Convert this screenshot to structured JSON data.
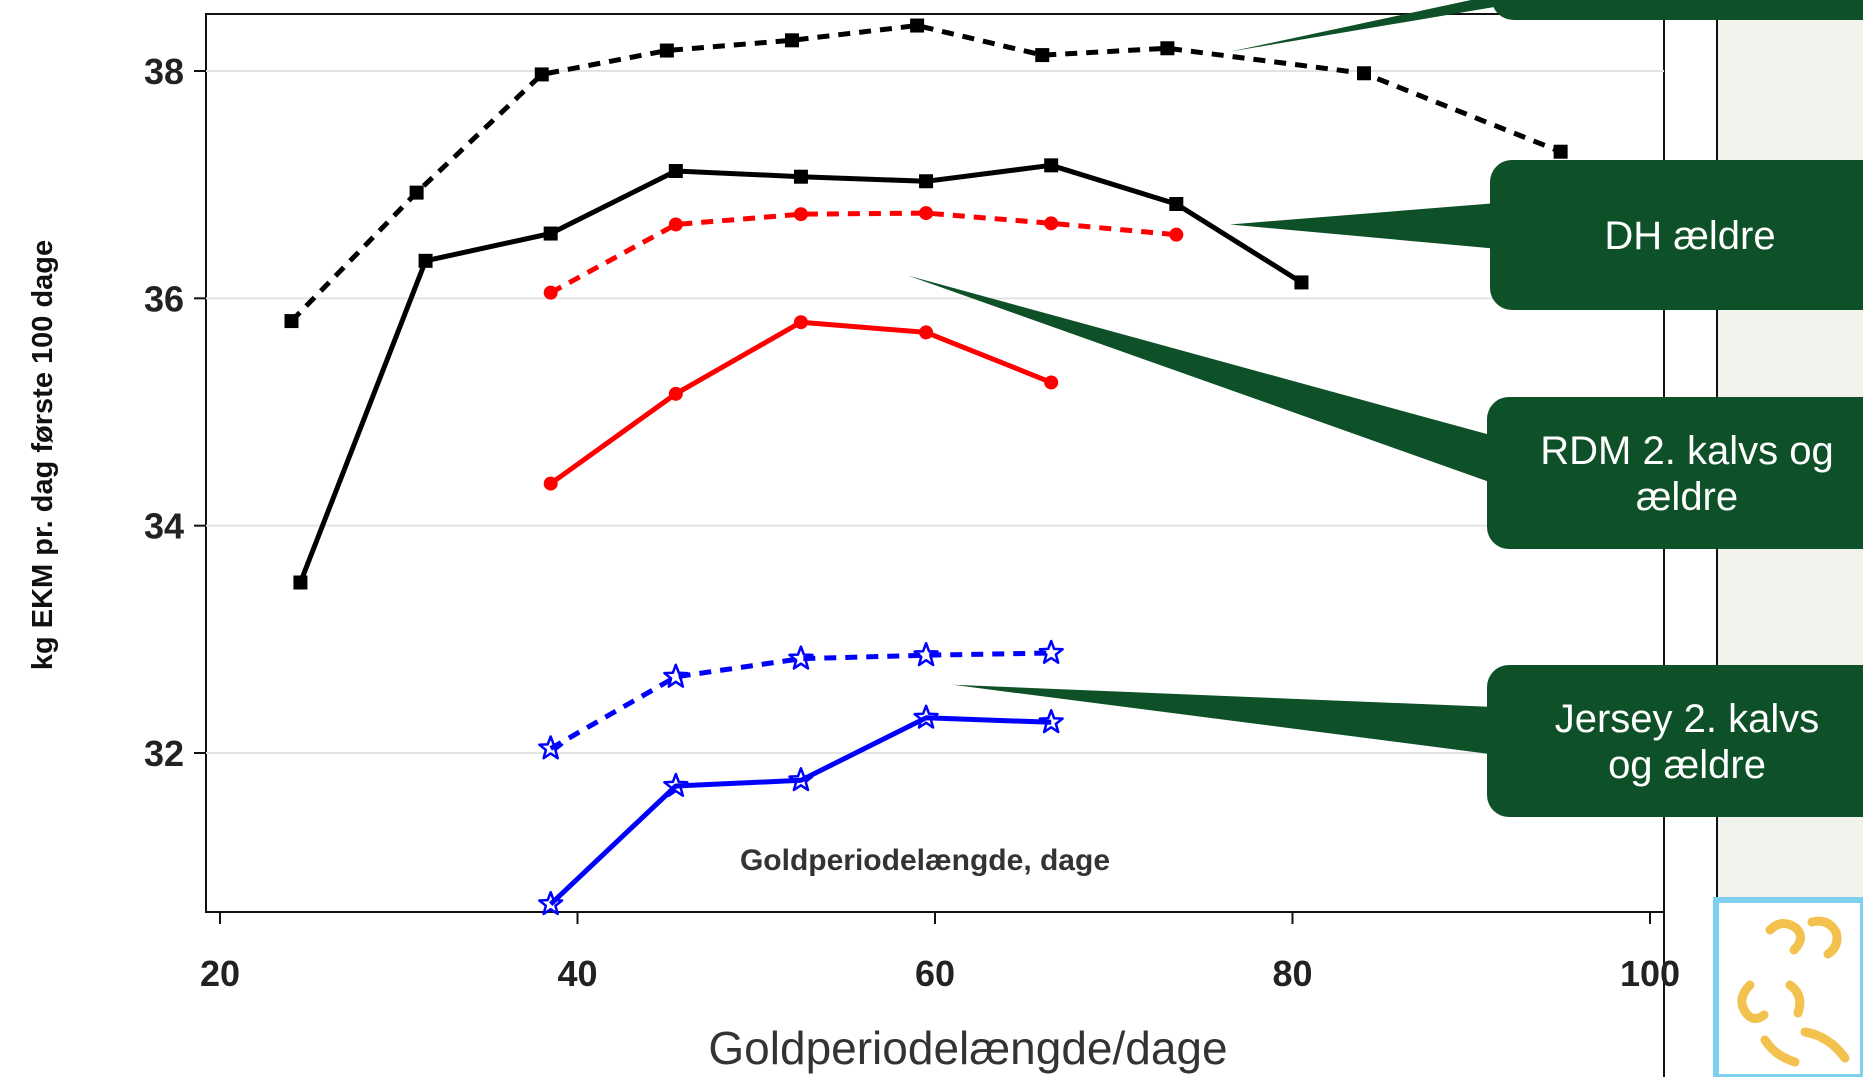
{
  "chart_data": {
    "type": "line",
    "xlabel": "Goldperiodelængde/dage",
    "ylabel": "kg EKM pr. dag første 100 dage",
    "inner_label": "Goldperiodelængde, dage",
    "xlim": [
      18,
      100.5
    ],
    "ylim": [
      30.55,
      38.5
    ],
    "x_ticks": [
      20,
      40,
      60,
      80,
      100
    ],
    "y_ticks": [
      32,
      34,
      36,
      38
    ],
    "grid": "horizontal",
    "series": [
      {
        "color": "#000000",
        "dashed": true,
        "marker": "square",
        "x": [
          24,
          31,
          38,
          45,
          52,
          59,
          66,
          73,
          84,
          95
        ],
        "y": [
          35.8,
          36.93,
          37.97,
          38.18,
          38.27,
          38.4,
          38.14,
          38.2,
          37.98,
          37.29
        ]
      },
      {
        "color": "#000000",
        "dashed": false,
        "marker": "square",
        "x": [
          24.5,
          31.5,
          38.5,
          45.5,
          52.5,
          59.5,
          66.5,
          73.5,
          80.5
        ],
        "y": [
          33.5,
          36.33,
          36.57,
          37.12,
          37.07,
          37.03,
          37.17,
          36.83,
          36.14
        ]
      },
      {
        "color": "#ff0000",
        "dashed": true,
        "marker": "circle",
        "x": [
          38.5,
          45.5,
          52.5,
          59.5,
          66.5,
          73.5
        ],
        "y": [
          36.05,
          36.65,
          36.74,
          36.75,
          36.66,
          36.56
        ]
      },
      {
        "color": "#ff0000",
        "dashed": false,
        "marker": "circle",
        "x": [
          38.5,
          45.5,
          52.5,
          59.5,
          66.5
        ],
        "y": [
          34.37,
          35.16,
          35.79,
          35.7,
          35.26
        ]
      },
      {
        "color": "#0000ff",
        "dashed": true,
        "marker": "star",
        "x": [
          38.5,
          45.5,
          52.5,
          59.5,
          66.5
        ],
        "y": [
          32.04,
          32.67,
          32.83,
          32.86,
          32.88
        ]
      },
      {
        "color": "#0000ff",
        "dashed": false,
        "marker": "star",
        "x": [
          38.5,
          45.5,
          52.5,
          59.5,
          66.5
        ],
        "y": [
          30.67,
          31.71,
          31.76,
          32.31,
          32.27
        ]
      }
    ],
    "annotations": [
      {
        "text": "",
        "box_color": "#0e5128",
        "points_to": {
          "x": 76.5,
          "y": 38.17
        }
      },
      {
        "text": "DH ældre",
        "box_color": "#0e5128",
        "points_to": {
          "x": 76.5,
          "y": 36.65
        }
      },
      {
        "text": "RDM 2. kalvs og ældre",
        "box_color": "#0e5128",
        "points_to": {
          "x": 58.5,
          "y": 36.2
        }
      },
      {
        "text": "Jersey 2. kalvs og ældre",
        "box_color": "#0e5128",
        "points_to": {
          "x": 61,
          "y": 32.6
        }
      }
    ]
  },
  "logo": {
    "icon": "cow-logo-icon",
    "accent": "#f2c14e",
    "frame": "#7fd0f0"
  }
}
